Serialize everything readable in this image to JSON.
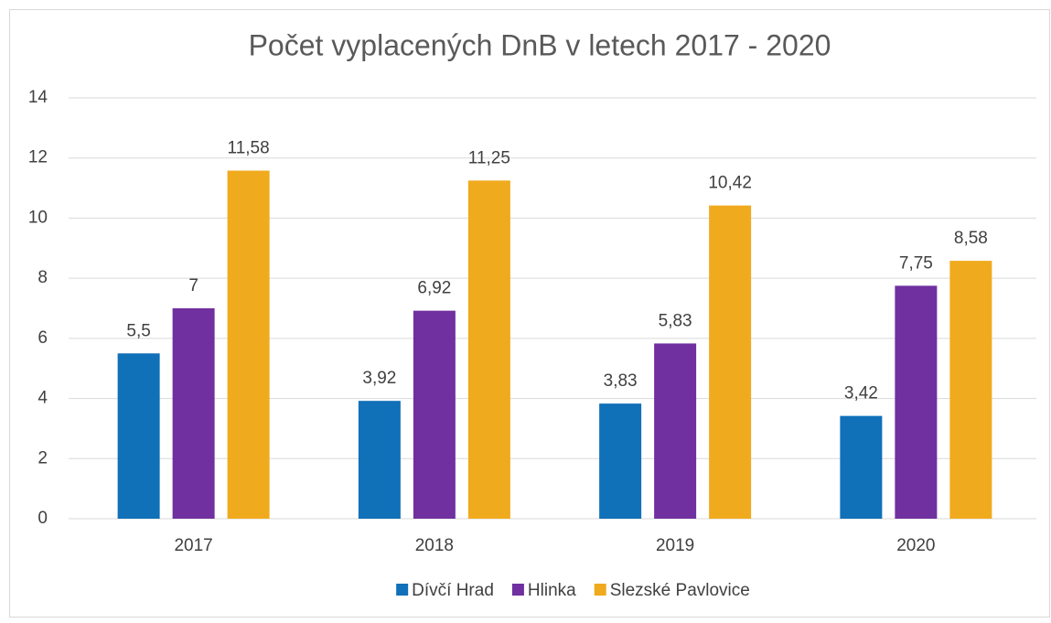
{
  "chart_data": {
    "type": "bar",
    "title": "Počet vyplacených DnB v letech 2017 - 2020",
    "categories": [
      "2017",
      "2018",
      "2019",
      "2020"
    ],
    "series": [
      {
        "name": "Dívčí Hrad",
        "color": "#1070b8",
        "values": [
          5.5,
          3.92,
          3.83,
          3.42
        ],
        "value_labels": [
          "5,5",
          "3,92",
          "3,83",
          "3,42"
        ]
      },
      {
        "name": "Hlinka",
        "color": "#7030a0",
        "values": [
          7,
          6.92,
          5.83,
          7.75
        ],
        "value_labels": [
          "7",
          "6,92",
          "5,83",
          "7,75"
        ]
      },
      {
        "name": "Slezské Pavlovice",
        "color": "#f0aa1e",
        "values": [
          11.58,
          11.25,
          10.42,
          8.58
        ],
        "value_labels": [
          "11,58",
          "11,25",
          "10,42",
          "8,58"
        ]
      }
    ],
    "ylim": [
      0,
      14
    ],
    "yticks": [
      0,
      2,
      4,
      6,
      8,
      10,
      12,
      14
    ],
    "grid": true,
    "legend": "bottom"
  }
}
